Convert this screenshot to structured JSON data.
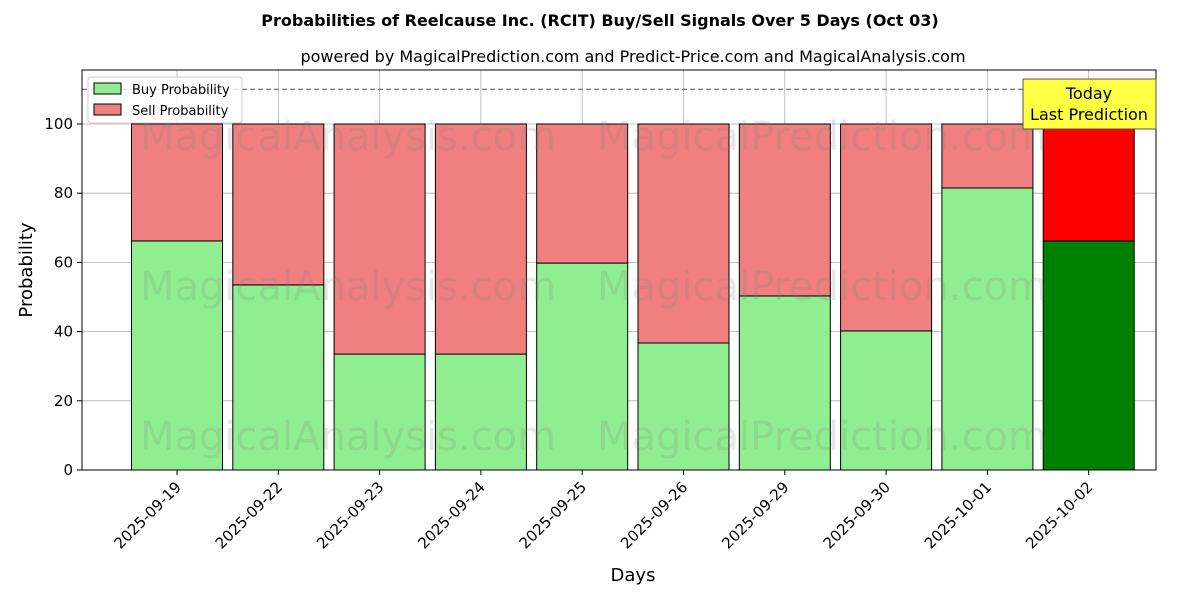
{
  "chart_data": {
    "type": "bar",
    "stacked": true,
    "title": "Probabilities of Reelcause Inc. (RCIT) Buy/Sell Signals Over 5 Days (Oct 03)",
    "subtitle": "powered by MagicalPrediction.com and Predict-Price.com and MagicalAnalysis.com",
    "xlabel": "Days",
    "ylabel": "Probability",
    "ylim": [
      0,
      115.6
    ],
    "yticks": [
      0,
      20,
      40,
      60,
      80,
      100
    ],
    "grid": true,
    "legend_position": "top-left",
    "categories": [
      "2025-09-19",
      "2025-09-22",
      "2025-09-23",
      "2025-09-24",
      "2025-09-25",
      "2025-09-26",
      "2025-09-29",
      "2025-09-30",
      "2025-10-01",
      "2025-10-02"
    ],
    "series": [
      {
        "name": "Buy Probability",
        "color": "#90ee90",
        "highlight_color": "#008000",
        "values": [
          66.2,
          53.5,
          33.5,
          33.5,
          59.8,
          36.7,
          50.3,
          40.2,
          81.5,
          66.2
        ]
      },
      {
        "name": "Sell Probability",
        "color": "#f08080",
        "highlight_color": "#ff0000",
        "values": [
          33.8,
          46.5,
          66.5,
          66.5,
          40.2,
          63.3,
          49.7,
          59.8,
          18.5,
          33.8
        ]
      }
    ],
    "reference_line": 110,
    "annotation": {
      "line1": "Today",
      "line2": "Last Prediction",
      "color": "#ffff44"
    },
    "watermarks": [
      "MagicalAnalysis.com",
      "MagicalPrediction.com"
    ]
  }
}
